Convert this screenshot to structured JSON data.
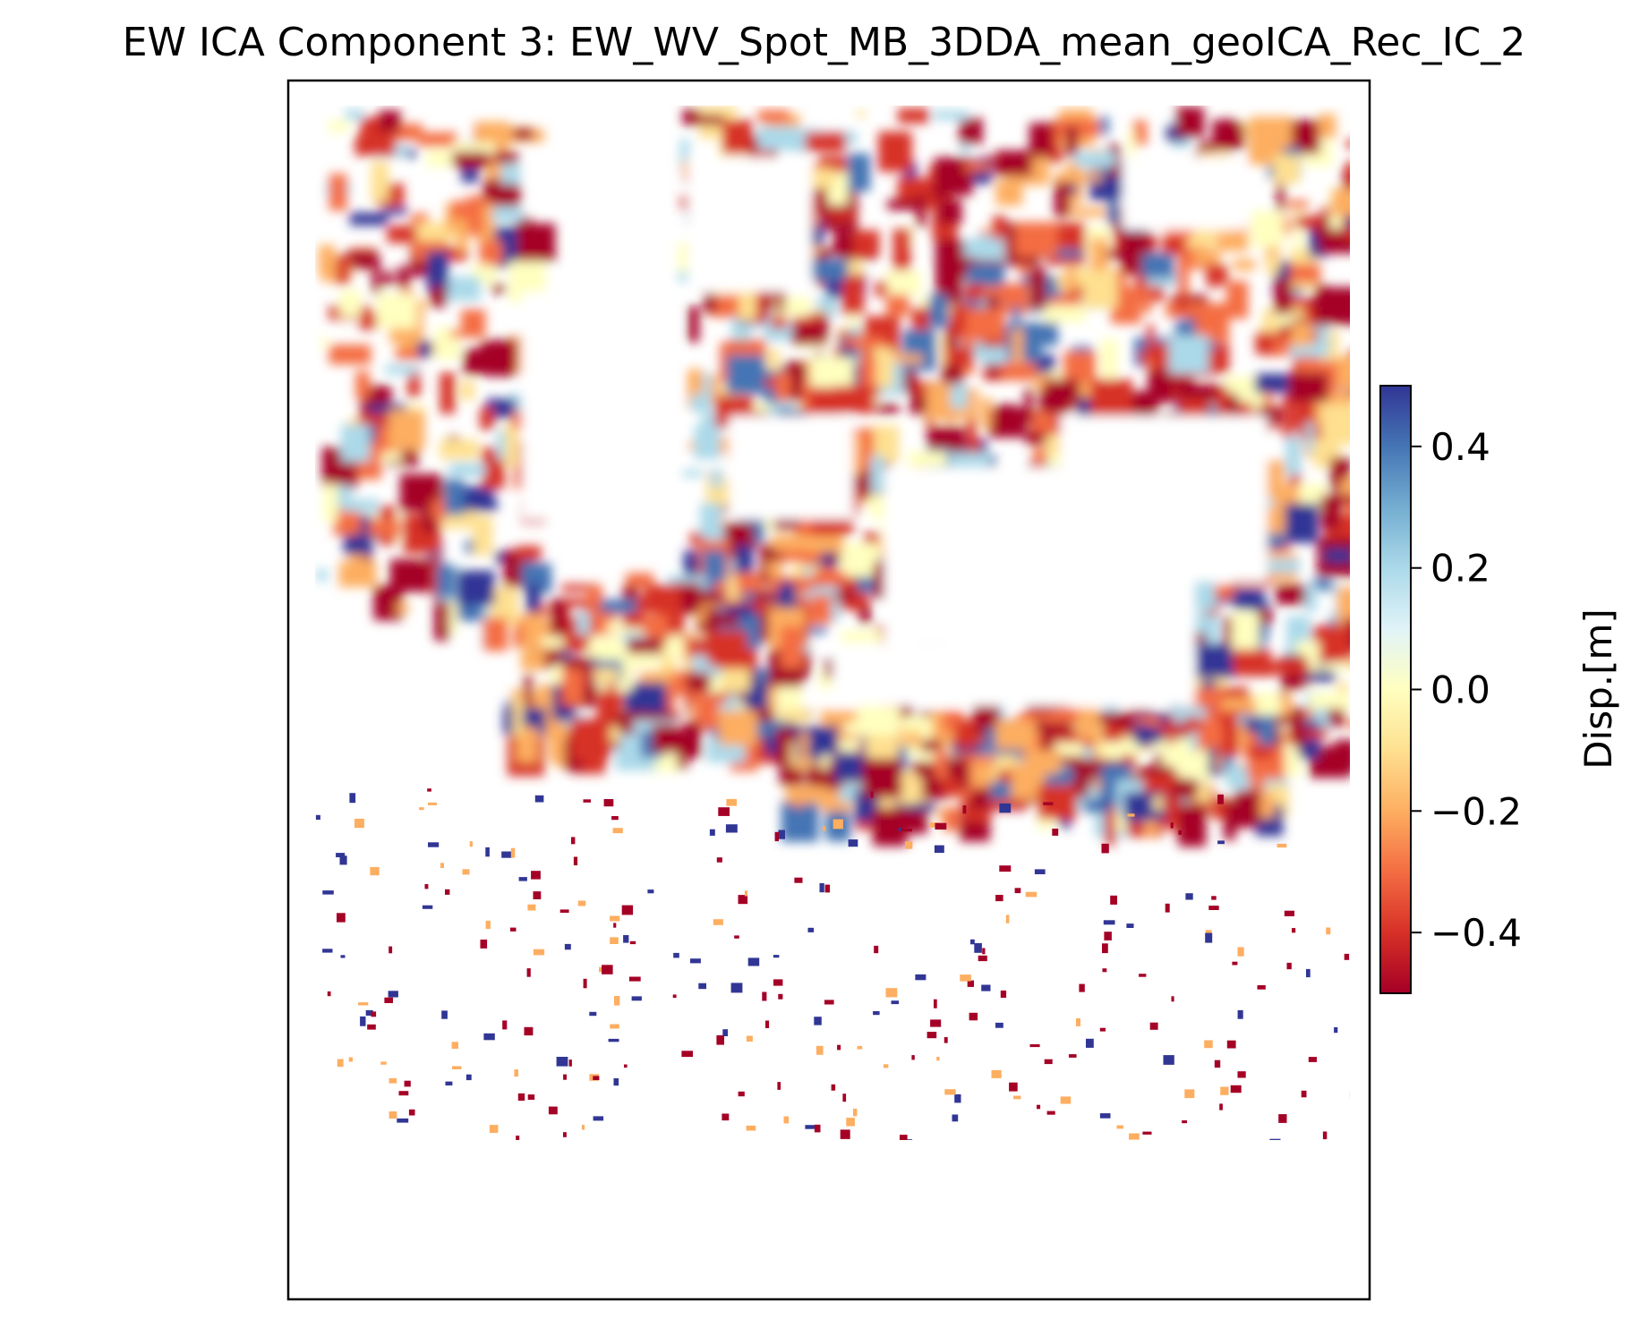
{
  "chart_data": {
    "type": "heatmap",
    "title": "EW ICA Component 3: EW_WV_Spot_MB_3DDA_mean_geoICA_Rec_IC_2",
    "xlabel": "",
    "ylabel": "",
    "colorbar": {
      "label": "Disp.[m]",
      "range": [
        -0.5,
        0.5
      ],
      "ticks": [
        0.4,
        0.2,
        0.0,
        -0.2,
        -0.4
      ],
      "tick_labels": [
        "0.4",
        "0.2",
        "0.0",
        "−0.2",
        "−0.4"
      ],
      "colormap": "RdYlBu",
      "colors": [
        "#a50026",
        "#d73027",
        "#f46d43",
        "#fdae61",
        "#fee090",
        "#ffffbf",
        "#e0f3f8",
        "#abd9e9",
        "#74add1",
        "#4575b4",
        "#313695"
      ],
      "position": "right"
    },
    "axes_ticks_visible": false,
    "grid": false
  }
}
